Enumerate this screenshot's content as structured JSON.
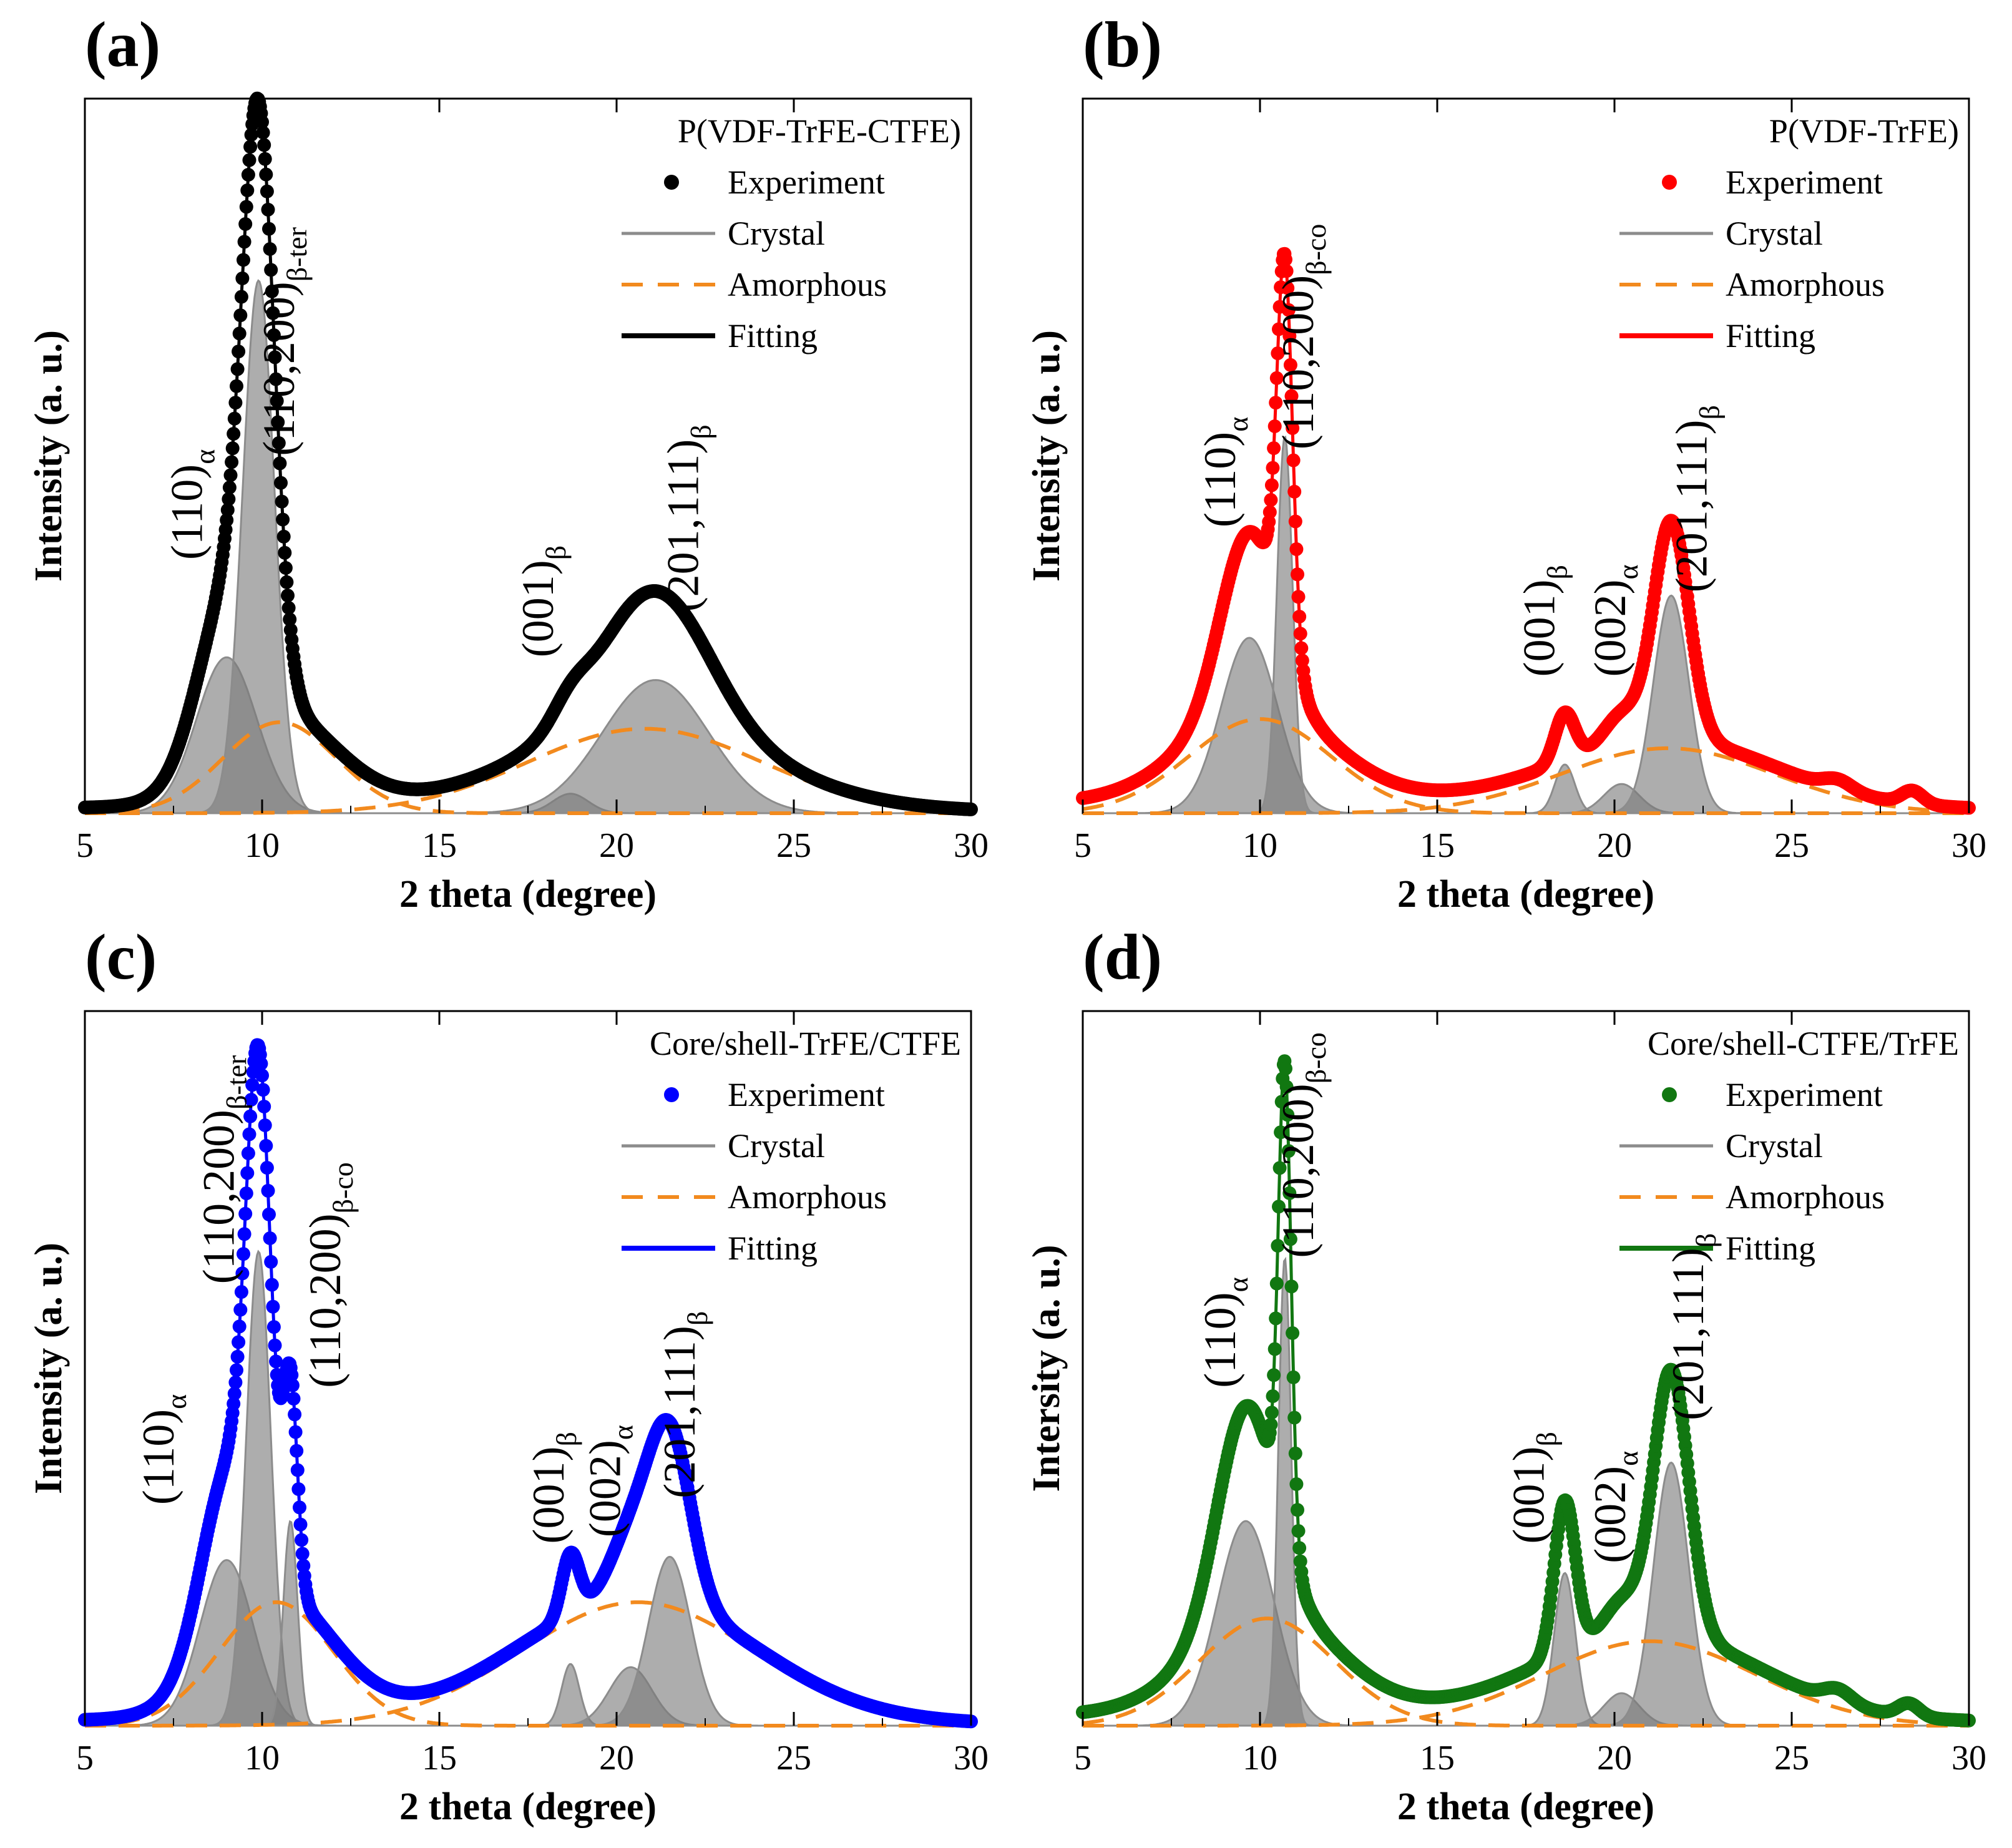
{
  "chart_data": [
    {
      "panel": "(a)",
      "type": "line",
      "xlabel": "2 theta (degree)",
      "ylabel": "Intensity (a. u.)",
      "xlim": [
        5,
        30
      ],
      "ylim": [
        0,
        1.1
      ],
      "xticks": [
        5,
        10,
        15,
        20,
        25,
        30
      ],
      "grid": false,
      "legend_title": "P(VDF-TrFE-CTFE)",
      "legend_position": "top-right",
      "color": "#000000",
      "series": [
        {
          "name": "Experiment",
          "style": "markers"
        },
        {
          "name": "Crystal",
          "style": "gray-line"
        },
        {
          "name": "Amorphous",
          "style": "dashed"
        },
        {
          "name": "Fitting",
          "style": "solid"
        }
      ],
      "crystal_peaks": [
        {
          "center": 9.0,
          "height": 0.24,
          "width": 0.85
        },
        {
          "center": 9.9,
          "height": 0.82,
          "width": 0.45
        },
        {
          "center": 18.7,
          "height": 0.03,
          "width": 0.5
        },
        {
          "center": 21.1,
          "height": 0.205,
          "width": 1.5
        }
      ],
      "amorphous_peaks": [
        {
          "center": 10.5,
          "height": 0.14,
          "width": 1.6
        },
        {
          "center": 20.8,
          "height": 0.13,
          "width": 3.3
        }
      ],
      "baseline": 0.01,
      "peak_labels": [
        {
          "main": "(110)",
          "sub": "α",
          "x": 8.3,
          "y": 0.39
        },
        {
          "main": "(110,200)",
          "sub": "β-ter",
          "x": 10.9,
          "y": 0.55
        },
        {
          "main": "(001)",
          "sub": "β",
          "x": 18.2,
          "y": 0.24
        },
        {
          "main": "(201,111)",
          "sub": "β",
          "x": 22.3,
          "y": 0.31
        }
      ]
    },
    {
      "panel": "(b)",
      "type": "line",
      "xlabel": "2 theta (degree)",
      "ylabel": "Intensity (a. u.)",
      "xlim": [
        5,
        30
      ],
      "ylim": [
        0,
        1.1
      ],
      "xticks": [
        5,
        10,
        15,
        20,
        25,
        30
      ],
      "grid": false,
      "legend_title": "P(VDF-TrFE)",
      "legend_position": "top-right",
      "color": "#ff0000",
      "series": [
        {
          "name": "Experiment",
          "style": "markers"
        },
        {
          "name": "Crystal",
          "style": "gray-line"
        },
        {
          "name": "Amorphous",
          "style": "dashed"
        },
        {
          "name": "Fitting",
          "style": "solid"
        }
      ],
      "crystal_peaks": [
        {
          "center": 9.7,
          "height": 0.27,
          "width": 0.8
        },
        {
          "center": 10.7,
          "height": 0.58,
          "width": 0.22
        },
        {
          "center": 18.6,
          "height": 0.075,
          "width": 0.28
        },
        {
          "center": 20.2,
          "height": 0.045,
          "width": 0.5
        },
        {
          "center": 21.6,
          "height": 0.335,
          "width": 0.5
        }
      ],
      "amorphous_peaks": [
        {
          "center": 10.0,
          "height": 0.145,
          "width": 2.0
        },
        {
          "center": 21.5,
          "height": 0.1,
          "width": 3.0
        }
      ],
      "extra_bumps": [
        {
          "center": 26.3,
          "height": 0.015,
          "width": 0.4
        },
        {
          "center": 28.4,
          "height": 0.02,
          "width": 0.3
        }
      ],
      "baseline": 0.02,
      "peak_labels": [
        {
          "main": "(110)",
          "sub": "α",
          "x": 9.3,
          "y": 0.44
        },
        {
          "main": "(110,200)",
          "sub": "β-co",
          "x": 11.5,
          "y": 0.56
        },
        {
          "main": "(001)",
          "sub": "β",
          "x": 18.3,
          "y": 0.21
        },
        {
          "main": "(002)",
          "sub": "α",
          "x": 20.3,
          "y": 0.21
        },
        {
          "main": "(201,111)",
          "sub": "β",
          "x": 22.6,
          "y": 0.34
        }
      ]
    },
    {
      "panel": "(c)",
      "type": "line",
      "xlabel": "2 theta (degree)",
      "ylabel": "Intensity (a. u.)",
      "xlim": [
        5,
        30
      ],
      "ylim": [
        0,
        1.1
      ],
      "xticks": [
        5,
        10,
        15,
        20,
        25,
        30
      ],
      "grid": false,
      "legend_title": "Core/shell-TrFE/CTFE",
      "legend_position": "top-right",
      "color": "#0000ff",
      "series": [
        {
          "name": "Experiment",
          "style": "markers"
        },
        {
          "name": "Crystal",
          "style": "gray-line"
        },
        {
          "name": "Amorphous",
          "style": "dashed"
        },
        {
          "name": "Fitting",
          "style": "solid"
        }
      ],
      "crystal_peaks": [
        {
          "center": 9.0,
          "height": 0.255,
          "width": 0.75
        },
        {
          "center": 9.9,
          "height": 0.73,
          "width": 0.35
        },
        {
          "center": 10.8,
          "height": 0.315,
          "width": 0.2
        },
        {
          "center": 18.7,
          "height": 0.095,
          "width": 0.25
        },
        {
          "center": 20.4,
          "height": 0.09,
          "width": 0.6
        },
        {
          "center": 21.5,
          "height": 0.26,
          "width": 0.6
        }
      ],
      "amorphous_peaks": [
        {
          "center": 10.4,
          "height": 0.19,
          "width": 1.6
        },
        {
          "center": 20.6,
          "height": 0.19,
          "width": 3.3
        }
      ],
      "baseline": 0.01,
      "peak_labels": [
        {
          "main": "(110)",
          "sub": "α",
          "x": 7.5,
          "y": 0.34
        },
        {
          "main": "(110,200)",
          "sub": "β-ter",
          "x": 9.2,
          "y": 0.68
        },
        {
          "main": "(110,200)",
          "sub": "β-co",
          "x": 12.2,
          "y": 0.52
        },
        {
          "main": "(001)",
          "sub": "β",
          "x": 18.5,
          "y": 0.28
        },
        {
          "main": "(002)",
          "sub": "α",
          "x": 20.1,
          "y": 0.29
        },
        {
          "main": "(201,111)",
          "sub": "β",
          "x": 22.2,
          "y": 0.35
        }
      ]
    },
    {
      "panel": "(d)",
      "type": "line",
      "xlabel": "2 theta (degree)",
      "ylabel": "Intersity (a. u.)",
      "xlim": [
        5,
        30
      ],
      "ylim": [
        0,
        1.1
      ],
      "xticks": [
        5,
        10,
        15,
        20,
        25,
        30
      ],
      "grid": false,
      "legend_title": "Core/shell-CTFE/TrFE",
      "legend_position": "top-right",
      "color": "#117711",
      "series": [
        {
          "name": "Experiment",
          "style": "markers"
        },
        {
          "name": "Crystal",
          "style": "gray-line"
        },
        {
          "name": "Amorphous",
          "style": "dashed"
        },
        {
          "name": "Fitting",
          "style": "solid"
        }
      ],
      "crystal_peaks": [
        {
          "center": 9.6,
          "height": 0.315,
          "width": 0.8
        },
        {
          "center": 10.7,
          "height": 0.72,
          "width": 0.18
        },
        {
          "center": 18.6,
          "height": 0.235,
          "width": 0.3
        },
        {
          "center": 20.2,
          "height": 0.05,
          "width": 0.5
        },
        {
          "center": 21.6,
          "height": 0.405,
          "width": 0.5
        }
      ],
      "amorphous_peaks": [
        {
          "center": 10.2,
          "height": 0.165,
          "width": 1.9
        },
        {
          "center": 21.0,
          "height": 0.13,
          "width": 3.0
        }
      ],
      "extra_bumps": [
        {
          "center": 26.3,
          "height": 0.02,
          "width": 0.4
        },
        {
          "center": 28.3,
          "height": 0.02,
          "width": 0.3
        }
      ],
      "baseline": 0.02,
      "peak_labels": [
        {
          "main": "(110)",
          "sub": "α",
          "x": 9.3,
          "y": 0.52
        },
        {
          "main": "(110,200)",
          "sub": "β-co",
          "x": 11.5,
          "y": 0.72
        },
        {
          "main": "(001)",
          "sub": "β",
          "x": 18.0,
          "y": 0.28
        },
        {
          "main": "(002)",
          "sub": "α",
          "x": 20.3,
          "y": 0.25
        },
        {
          "main": "(201,111)",
          "sub": "β",
          "x": 22.5,
          "y": 0.47
        }
      ]
    }
  ],
  "colors": {
    "crystal_fill": "#7a7a7a",
    "crystal_line": "#8c8c8c",
    "amorphous": "#f28a1e"
  }
}
